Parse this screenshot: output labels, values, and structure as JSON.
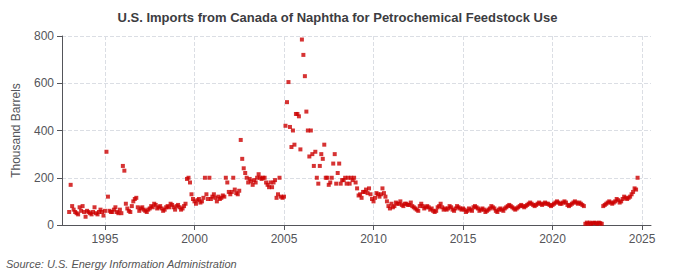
{
  "chart_data": {
    "type": "scatter",
    "title": "U.S. Imports from Canada of Naphtha for Petrochemical Feedstock Use",
    "ylabel": "Thousand Barrels",
    "annotations": [
      "Source: U.S. Energy Information Administration"
    ],
    "color": "#cc0000",
    "marker": "square",
    "grid": true,
    "xlim": [
      1992.6,
      2025.5
    ],
    "xticks": [
      1995,
      2000,
      2005,
      2010,
      2015,
      2020,
      2025
    ],
    "ylim": [
      0,
      800
    ],
    "yticks": [
      0,
      200,
      400,
      600,
      800
    ],
    "x": [
      1993,
      1993.0833,
      1993.1667,
      1993.25,
      1993.3333,
      1993.4167,
      1993.5,
      1993.5833,
      1993.6667,
      1993.75,
      1993.8333,
      1993.9167,
      1994,
      1994.0833,
      1994.1667,
      1994.25,
      1994.3333,
      1994.4167,
      1994.5,
      1994.5833,
      1994.6667,
      1994.75,
      1994.8333,
      1994.9167,
      1995,
      1995.0833,
      1995.1667,
      1995.25,
      1995.3333,
      1995.4167,
      1995.5,
      1995.5833,
      1995.6667,
      1995.75,
      1995.8333,
      1995.9167,
      1996,
      1996.0833,
      1996.1667,
      1996.25,
      1996.3333,
      1996.4167,
      1996.5,
      1996.5833,
      1996.6667,
      1996.75,
      1996.8333,
      1996.9167,
      1997,
      1997.0833,
      1997.1667,
      1997.25,
      1997.3333,
      1997.4167,
      1997.5,
      1997.5833,
      1997.6667,
      1997.75,
      1997.8333,
      1997.9167,
      1998,
      1998.0833,
      1998.1667,
      1998.25,
      1998.3333,
      1998.4167,
      1998.5,
      1998.5833,
      1998.6667,
      1998.75,
      1998.8333,
      1998.9167,
      1999,
      1999.0833,
      1999.1667,
      1999.25,
      1999.3333,
      1999.4167,
      1999.5,
      1999.5833,
      1999.6667,
      1999.75,
      1999.8333,
      1999.9167,
      2000,
      2000.0833,
      2000.1667,
      2000.25,
      2000.3333,
      2000.4167,
      2000.5,
      2000.5833,
      2000.6667,
      2000.75,
      2000.8333,
      2000.9167,
      2001,
      2001.0833,
      2001.1667,
      2001.25,
      2001.3333,
      2001.4167,
      2001.5,
      2001.5833,
      2001.6667,
      2001.75,
      2001.8333,
      2001.9167,
      2002,
      2002.0833,
      2002.1667,
      2002.25,
      2002.3333,
      2002.4167,
      2002.5,
      2002.5833,
      2002.6667,
      2002.75,
      2002.8333,
      2002.9167,
      2003,
      2003.0833,
      2003.1667,
      2003.25,
      2003.3333,
      2003.4167,
      2003.5,
      2003.5833,
      2003.6667,
      2003.75,
      2003.8333,
      2003.9167,
      2004,
      2004.0833,
      2004.1667,
      2004.25,
      2004.3333,
      2004.4167,
      2004.5,
      2004.5833,
      2004.6667,
      2004.75,
      2004.8333,
      2004.9167,
      2005,
      2005.0833,
      2005.1667,
      2005.25,
      2005.3333,
      2005.4167,
      2005.5,
      2005.5833,
      2005.6667,
      2005.75,
      2005.8333,
      2005.9167,
      2006,
      2006.0833,
      2006.1667,
      2006.25,
      2006.3333,
      2006.4167,
      2006.5,
      2006.5833,
      2006.6667,
      2006.75,
      2006.8333,
      2006.9167,
      2007,
      2007.0833,
      2007.1667,
      2007.25,
      2007.3333,
      2007.4167,
      2007.5,
      2007.5833,
      2007.6667,
      2007.75,
      2007.8333,
      2007.9167,
      2008,
      2008.0833,
      2008.1667,
      2008.25,
      2008.3333,
      2008.4167,
      2008.5,
      2008.5833,
      2008.6667,
      2008.75,
      2008.8333,
      2008.9167,
      2009,
      2009.0833,
      2009.1667,
      2009.25,
      2009.3333,
      2009.4167,
      2009.5,
      2009.5833,
      2009.6667,
      2009.75,
      2009.8333,
      2009.9167,
      2010,
      2010.0833,
      2010.1667,
      2010.25,
      2010.3333,
      2010.4167,
      2010.5,
      2010.5833,
      2010.6667,
      2010.75,
      2010.8333,
      2010.9167,
      2011,
      2011.0833,
      2011.1667,
      2011.25,
      2011.3333,
      2011.4167,
      2011.5,
      2011.5833,
      2011.6667,
      2011.75,
      2011.8333,
      2011.9167,
      2012,
      2012.0833,
      2012.1667,
      2012.25,
      2012.3333,
      2012.4167,
      2012.5,
      2012.5833,
      2012.6667,
      2012.75,
      2012.8333,
      2012.9167,
      2013,
      2013.0833,
      2013.1667,
      2013.25,
      2013.3333,
      2013.4167,
      2013.5,
      2013.5833,
      2013.6667,
      2013.75,
      2013.8333,
      2013.9167,
      2014,
      2014.0833,
      2014.1667,
      2014.25,
      2014.3333,
      2014.4167,
      2014.5,
      2014.5833,
      2014.6667,
      2014.75,
      2014.8333,
      2014.9167,
      2015,
      2015.0833,
      2015.1667,
      2015.25,
      2015.3333,
      2015.4167,
      2015.5,
      2015.5833,
      2015.6667,
      2015.75,
      2015.8333,
      2015.9167,
      2016,
      2016.0833,
      2016.1667,
      2016.25,
      2016.3333,
      2016.4167,
      2016.5,
      2016.5833,
      2016.6667,
      2016.75,
      2016.8333,
      2016.9167,
      2017,
      2017.0833,
      2017.1667,
      2017.25,
      2017.3333,
      2017.4167,
      2017.5,
      2017.5833,
      2017.6667,
      2017.75,
      2017.8333,
      2017.9167,
      2018,
      2018.0833,
      2018.1667,
      2018.25,
      2018.3333,
      2018.4167,
      2018.5,
      2018.5833,
      2018.6667,
      2018.75,
      2018.8333,
      2018.9167,
      2019,
      2019.0833,
      2019.1667,
      2019.25,
      2019.3333,
      2019.4167,
      2019.5,
      2019.5833,
      2019.6667,
      2019.75,
      2019.8333,
      2019.9167,
      2020,
      2020.0833,
      2020.1667,
      2020.25,
      2020.3333,
      2020.4167,
      2020.5,
      2020.5833,
      2020.6667,
      2020.75,
      2020.8333,
      2020.9167,
      2021,
      2021.0833,
      2021.1667,
      2021.25,
      2021.3333,
      2021.4167,
      2021.5,
      2021.5833,
      2021.6667,
      2021.75,
      2021.8333,
      2021.9167,
      2022,
      2022.0833,
      2022.1667,
      2022.25,
      2022.3333,
      2022.4167,
      2022.5,
      2022.5833,
      2022.6667,
      2022.75,
      2022.8333,
      2022.9167,
      2023,
      2023.0833,
      2023.1667,
      2023.25,
      2023.3333,
      2023.4167,
      2023.5,
      2023.5833,
      2023.6667,
      2023.75,
      2023.8333,
      2023.9167,
      2024,
      2024.0833,
      2024.1667,
      2024.25,
      2024.3333,
      2024.4167,
      2024.5,
      2024.5833,
      2024.6667,
      2024.75
    ],
    "values": [
      55,
      170,
      80,
      65,
      55,
      50,
      45,
      75,
      60,
      80,
      55,
      35,
      60,
      55,
      50,
      45,
      55,
      75,
      50,
      45,
      55,
      65,
      55,
      40,
      60,
      310,
      120,
      60,
      55,
      55,
      65,
      75,
      55,
      50,
      65,
      50,
      250,
      230,
      90,
      70,
      60,
      55,
      80,
      100,
      110,
      115,
      75,
      60,
      70,
      75,
      65,
      60,
      55,
      65,
      70,
      80,
      75,
      90,
      85,
      70,
      75,
      80,
      70,
      60,
      65,
      75,
      80,
      75,
      90,
      85,
      75,
      65,
      80,
      85,
      75,
      65,
      70,
      80,
      90,
      195,
      200,
      180,
      130,
      110,
      100,
      90,
      105,
      110,
      95,
      100,
      115,
      200,
      130,
      110,
      200,
      110,
      120,
      130,
      115,
      100,
      120,
      110,
      115,
      125,
      120,
      200,
      180,
      140,
      130,
      140,
      200,
      150,
      135,
      130,
      145,
      360,
      280,
      240,
      220,
      200,
      180,
      195,
      185,
      170,
      190,
      180,
      200,
      215,
      200,
      195,
      200,
      200,
      180,
      170,
      160,
      180,
      160,
      180,
      190,
      115,
      130,
      200,
      120,
      115,
      120,
      420,
      520,
      605,
      415,
      330,
      400,
      340,
      470,
      470,
      460,
      320,
      785,
      720,
      630,
      480,
      400,
      290,
      400,
      300,
      250,
      310,
      200,
      175,
      250,
      300,
      280,
      340,
      200,
      200,
      170,
      180,
      200,
      260,
      300,
      175,
      220,
      260,
      175,
      190,
      190,
      200,
      175,
      200,
      175,
      200,
      190,
      200,
      180,
      155,
      125,
      130,
      115,
      140,
      140,
      150,
      135,
      155,
      130,
      110,
      100,
      115,
      135,
      130,
      120,
      130,
      155,
      135,
      120,
      100,
      80,
      70,
      90,
      75,
      80,
      95,
      90,
      90,
      100,
      85,
      80,
      90,
      90,
      85,
      85,
      95,
      80,
      75,
      70,
      65,
      60,
      80,
      90,
      80,
      70,
      75,
      80,
      75,
      65,
      70,
      60,
      55,
      60,
      75,
      80,
      90,
      75,
      65,
      70,
      65,
      70,
      80,
      75,
      65,
      60,
      70,
      80,
      75,
      70,
      65,
      70,
      65,
      55,
      60,
      70,
      65,
      60,
      75,
      80,
      75,
      70,
      60,
      65,
      70,
      65,
      55,
      60,
      65,
      70,
      80,
      75,
      70,
      60,
      55,
      65,
      70,
      65,
      60,
      70,
      75,
      80,
      85,
      80,
      75,
      70,
      65,
      70,
      75,
      80,
      85,
      80,
      75,
      80,
      85,
      90,
      95,
      90,
      85,
      80,
      85,
      90,
      95,
      90,
      85,
      90,
      95,
      90,
      90,
      85,
      80,
      85,
      90,
      95,
      100,
      95,
      90,
      90,
      95,
      100,
      95,
      85,
      80,
      85,
      90,
      95,
      100,
      95,
      90,
      95,
      90,
      85,
      80,
      5,
      10,
      5,
      10,
      5,
      8,
      10,
      8,
      5,
      10,
      8,
      5,
      80,
      85,
      90,
      95,
      100,
      95,
      90,
      95,
      100,
      110,
      105,
      95,
      100,
      110,
      120,
      115,
      110,
      115,
      120,
      130,
      140,
      155,
      150,
      200
    ]
  }
}
